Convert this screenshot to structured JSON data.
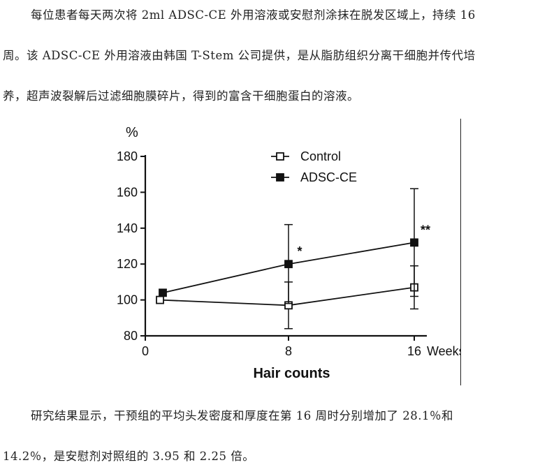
{
  "text": {
    "p1": "每位患者每天两次将 2ml ADSC-CE 外用溶液或安慰剂涂抹在脱发区域上，持续 16",
    "p2": "周。该 ADSC-CE 外用溶液由韩国 T-Stem 公司提供，是从脂肪组织分离干细胞并传代培",
    "p3": "养，超声波裂解后过滤细胞膜碎片，得到的富含干细胞蛋白的溶液。",
    "p4": "研究结果显示，干预组的平均头发密度和厚度在第 16 周时分别增加了 28.1％和",
    "p5": "14.2％，是安慰剂对照组的 3.95 和 2.25 倍。"
  },
  "chart_data": {
    "type": "line",
    "title": "",
    "ylabel": "%",
    "xlabel": "Hair counts",
    "x_unit_label": "Weeks",
    "x": [
      0,
      8,
      16
    ],
    "x_ticks": [
      "0",
      "8",
      "16"
    ],
    "ylim": [
      80,
      180
    ],
    "y_ticks": [
      "80",
      "100",
      "120",
      "140",
      "160",
      "180"
    ],
    "legend_position": "top-right",
    "series": [
      {
        "name": "Control",
        "marker": "open-square",
        "values": [
          100,
          97,
          107
        ],
        "err": [
          0,
          13,
          12
        ]
      },
      {
        "name": "ADSC-CE",
        "marker": "filled-square",
        "values": [
          104,
          120,
          132
        ],
        "err": [
          0,
          22,
          30
        ]
      }
    ],
    "annotations": [
      {
        "x": 8,
        "text": "*"
      },
      {
        "x": 16,
        "text": "**"
      }
    ]
  }
}
